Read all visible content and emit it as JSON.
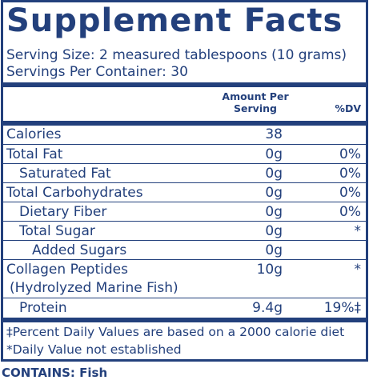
{
  "title": "Supplement Facts",
  "serving_size": "Serving Size: 2 measured tablespoons (10 grams)",
  "servings_per_container": "Servings Per Container: 30",
  "table": {
    "header": {
      "amount": "Amount Per Serving",
      "dv": "%DV"
    },
    "rows": [
      {
        "name": "Calories",
        "amount": "38"
      },
      {
        "name": "Total Fat",
        "amount": "0g",
        "dv": "0%"
      },
      {
        "name": "Saturated Fat",
        "amount": "0g",
        "dv": "0%"
      },
      {
        "name": "Total Carbohydrates",
        "amount": "0g",
        "dv": "0%"
      },
      {
        "name": "Dietary Fiber",
        "amount": "0g",
        "dv": "0%"
      },
      {
        "name": "Total Sugar",
        "amount": "0g",
        "dv": "*"
      },
      {
        "name": "Added Sugars",
        "amount": "0g"
      },
      {
        "name": "Collagen Peptides",
        "sub": "(Hydrolyzed Marine Fish)",
        "amount": "10g",
        "dv": "*"
      },
      {
        "name": "Protein",
        "amount": "9.4g",
        "dv": "19%‡"
      }
    ]
  },
  "footnotes": [
    "‡Percent Daily Values are based on a 2000 calorie diet",
    "*Daily Value not established"
  ],
  "contains": "CONTAINS: Fish"
}
